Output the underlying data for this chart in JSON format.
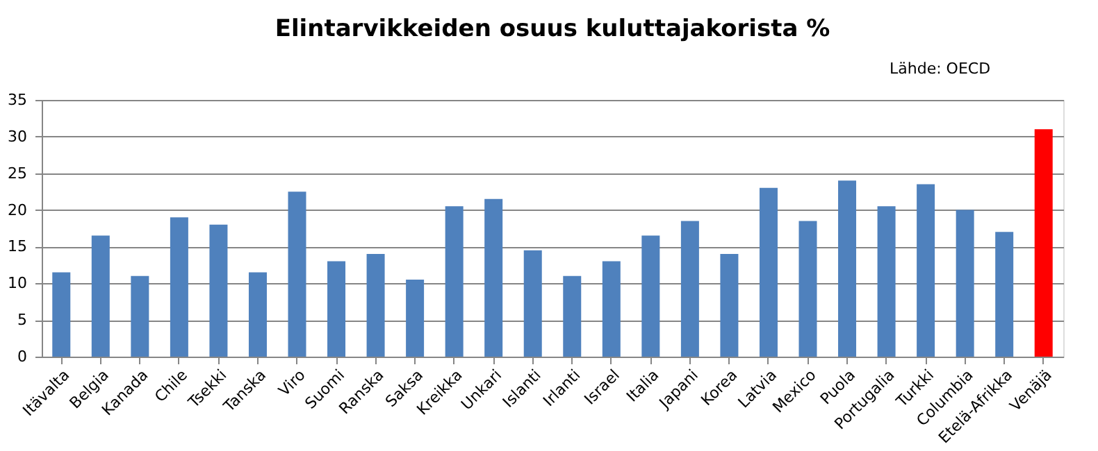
{
  "chart_data": {
    "type": "bar",
    "title": "Elintarvikkeiden osuus kuluttajakorista %",
    "annotations": [
      "Lähde: OECD"
    ],
    "categories": [
      "Itävalta",
      "Belgia",
      "Kanada",
      "Chile",
      "Tsekki",
      "Tanska",
      "Viro",
      "Suomi",
      "Ranska",
      "Saksa",
      "Kreikka",
      "Unkari",
      "Islanti",
      "Irlanti",
      "Israel",
      "Italia",
      "Japani",
      "Korea",
      "Latvia",
      "Mexico",
      "Puola",
      "Portugalia",
      "Turkki",
      "Columbia",
      "Etelä-Afrikka",
      "Venäjä"
    ],
    "values": [
      11.5,
      16.5,
      11,
      19,
      18,
      11.5,
      22.5,
      13,
      14,
      10.5,
      20.5,
      21.5,
      14.5,
      11,
      13,
      16.5,
      18.5,
      14,
      23,
      18.5,
      24,
      20.5,
      23.5,
      20,
      17,
      31
    ],
    "colors": [
      "#4f81bd",
      "#4f81bd",
      "#4f81bd",
      "#4f81bd",
      "#4f81bd",
      "#4f81bd",
      "#4f81bd",
      "#4f81bd",
      "#4f81bd",
      "#4f81bd",
      "#4f81bd",
      "#4f81bd",
      "#4f81bd",
      "#4f81bd",
      "#4f81bd",
      "#4f81bd",
      "#4f81bd",
      "#4f81bd",
      "#4f81bd",
      "#4f81bd",
      "#4f81bd",
      "#4f81bd",
      "#4f81bd",
      "#4f81bd",
      "#4f81bd",
      "#ff0000"
    ],
    "ylim": [
      0,
      35
    ],
    "yticks": [
      0,
      5,
      10,
      15,
      20,
      25,
      30,
      35
    ],
    "grid": "y"
  }
}
